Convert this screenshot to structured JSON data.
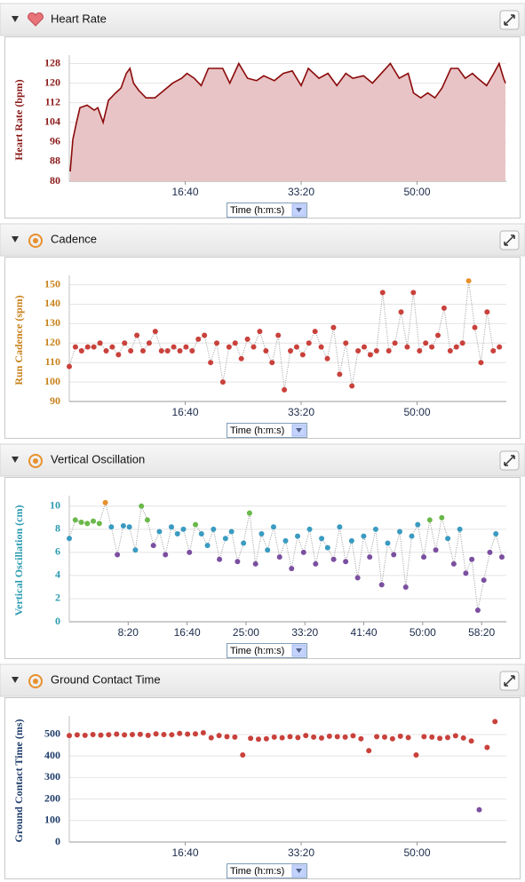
{
  "chart_data": [
    {
      "type": "area",
      "title": "Heart Rate",
      "ylabel": "Heart Rate (bpm)",
      "x_selector": "Time (h:m:s)",
      "color": "#8b0a0a",
      "fill_color": "#e8c4c6",
      "axis_color": "#8b1a1a",
      "grid": true,
      "xlim": [
        0,
        3770
      ],
      "xticks": [
        {
          "value": 1000,
          "label": "16:40"
        },
        {
          "value": 2000,
          "label": "33:20"
        },
        {
          "value": 3000,
          "label": "50:00"
        }
      ],
      "ylim": [
        80,
        130
      ],
      "yticks": [
        80,
        88,
        96,
        104,
        112,
        120,
        128
      ],
      "x": [
        8,
        31,
        62,
        92,
        154,
        215,
        246,
        292,
        338,
        400,
        446,
        492,
        523,
        554,
        600,
        662,
        738,
        815,
        892,
        969,
        1015,
        1077,
        1138,
        1200,
        1262,
        1323,
        1385,
        1462,
        1538,
        1615,
        1677,
        1769,
        1846,
        1923,
        2000,
        2062,
        2154,
        2231,
        2308,
        2385,
        2446,
        2538,
        2615,
        2692,
        2769,
        2846,
        2923,
        2969,
        3031,
        3092,
        3154,
        3215,
        3292,
        3354,
        3415,
        3477,
        3523,
        3600,
        3662,
        3708,
        3746,
        3762
      ],
      "values": [
        84,
        97,
        104,
        110,
        111,
        109,
        110,
        104,
        113,
        116,
        118,
        124,
        126,
        120,
        117,
        114,
        114,
        117,
        120,
        122,
        124,
        122,
        119,
        126,
        126,
        126,
        120,
        128,
        122,
        121,
        123,
        121,
        124,
        125,
        119,
        126,
        122,
        124,
        119,
        124,
        122,
        123,
        120,
        124,
        128,
        122,
        124,
        116,
        114,
        116,
        114,
        118,
        126,
        126,
        122,
        124,
        122,
        119,
        124,
        128,
        122,
        120
      ]
    },
    {
      "type": "scatter",
      "title": "Cadence",
      "ylabel": "Run Cadence (spm)",
      "x_selector": "Time (h:m:s)",
      "connector_color": "#9a9a9a",
      "axis_color": "#c8811a",
      "grid": true,
      "xlim": [
        0,
        3770
      ],
      "xticks": [
        {
          "value": 1000,
          "label": "16:40"
        },
        {
          "value": 2000,
          "label": "33:20"
        },
        {
          "value": 3000,
          "label": "50:00"
        }
      ],
      "ylim": [
        90,
        153
      ],
      "yticks": [
        90,
        100,
        110,
        120,
        130,
        140,
        150
      ],
      "x": [
        0,
        53,
        106,
        159,
        212,
        265,
        318,
        371,
        424,
        477,
        530,
        583,
        636,
        689,
        742,
        795,
        848,
        901,
        954,
        1007,
        1060,
        1113,
        1166,
        1219,
        1272,
        1325,
        1378,
        1431,
        1484,
        1537,
        1590,
        1643,
        1696,
        1749,
        1802,
        1855,
        1908,
        1961,
        2014,
        2067,
        2120,
        2173,
        2226,
        2279,
        2332,
        2385,
        2438,
        2491,
        2544,
        2597,
        2650,
        2703,
        2756,
        2809,
        2862,
        2915,
        2968,
        3021,
        3074,
        3127,
        3180,
        3233,
        3286,
        3339,
        3392,
        3445,
        3498,
        3551,
        3604,
        3657,
        3710
      ],
      "values": [
        108,
        118,
        116,
        118,
        118,
        120,
        116,
        118,
        114,
        120,
        116,
        124,
        116,
        120,
        126,
        116,
        116,
        118,
        116,
        118,
        116,
        122,
        124,
        110,
        120,
        100,
        118,
        120,
        112,
        122,
        118,
        126,
        116,
        110,
        124,
        96,
        116,
        118,
        114,
        120,
        126,
        118,
        112,
        128,
        104,
        120,
        98,
        116,
        118,
        114,
        116,
        146,
        116,
        120,
        136,
        118,
        146,
        116,
        120,
        118,
        124,
        138,
        116,
        118,
        120,
        152,
        128,
        110,
        136,
        116,
        118
      ],
      "point_colors": [
        "#c9413b",
        "#c9413b",
        "#c9413b",
        "#c9413b",
        "#c9413b",
        "#c9413b",
        "#c9413b",
        "#c9413b",
        "#c9413b",
        "#c9413b",
        "#c9413b",
        "#c9413b",
        "#c9413b",
        "#c9413b",
        "#c9413b",
        "#c9413b",
        "#c9413b",
        "#c9413b",
        "#c9413b",
        "#c9413b",
        "#c9413b",
        "#c9413b",
        "#c9413b",
        "#c9413b",
        "#c9413b",
        "#c9413b",
        "#c9413b",
        "#c9413b",
        "#c9413b",
        "#c9413b",
        "#c9413b",
        "#c9413b",
        "#c9413b",
        "#c9413b",
        "#c9413b",
        "#c9413b",
        "#c9413b",
        "#c9413b",
        "#c9413b",
        "#c9413b",
        "#c9413b",
        "#c9413b",
        "#c9413b",
        "#c9413b",
        "#c9413b",
        "#c9413b",
        "#c9413b",
        "#c9413b",
        "#c9413b",
        "#c9413b",
        "#c9413b",
        "#c9413b",
        "#c9413b",
        "#c9413b",
        "#c9413b",
        "#c9413b",
        "#c9413b",
        "#c9413b",
        "#c9413b",
        "#c9413b",
        "#c9413b",
        "#c9413b",
        "#c9413b",
        "#c9413b",
        "#c9413b",
        "#e8902c",
        "#c9413b",
        "#c9413b",
        "#c9413b",
        "#c9413b",
        "#c9413b"
      ]
    },
    {
      "type": "scatter",
      "title": "Vertical Oscillation",
      "ylabel": "Vertical Oscillation (cm)",
      "x_selector": "Time (h:m:s)",
      "connector_color": "#9a9a9a",
      "axis_color": "#2a9bb0",
      "grid": true,
      "xlim": [
        0,
        3710
      ],
      "xticks": [
        {
          "value": 500,
          "label": "8:20"
        },
        {
          "value": 1000,
          "label": "16:40"
        },
        {
          "value": 1500,
          "label": "25:00"
        },
        {
          "value": 2000,
          "label": "33:20"
        },
        {
          "value": 2500,
          "label": "41:40"
        },
        {
          "value": 3000,
          "label": "50:00"
        },
        {
          "value": 3500,
          "label": "58:20"
        }
      ],
      "ylim": [
        0,
        10.6
      ],
      "yticks": [
        0,
        2,
        4,
        6,
        8,
        10
      ],
      "x": [
        0,
        51,
        102,
        153,
        204,
        255,
        306,
        357,
        408,
        459,
        510,
        561,
        612,
        663,
        714,
        765,
        816,
        867,
        918,
        969,
        1020,
        1071,
        1122,
        1173,
        1224,
        1275,
        1326,
        1377,
        1428,
        1479,
        1530,
        1581,
        1632,
        1683,
        1734,
        1785,
        1836,
        1887,
        1938,
        1989,
        2040,
        2091,
        2142,
        2193,
        2244,
        2295,
        2346,
        2397,
        2448,
        2499,
        2550,
        2601,
        2652,
        2703,
        2754,
        2805,
        2856,
        2907,
        2958,
        3009,
        3060,
        3111,
        3162,
        3213,
        3264,
        3315,
        3366,
        3417,
        3468,
        3519,
        3570,
        3621,
        3672
      ],
      "values": [
        7.2,
        8.8,
        8.6,
        8.5,
        8.7,
        8.5,
        10.3,
        8.2,
        5.8,
        8.3,
        8.2,
        6.2,
        10.0,
        8.8,
        6.6,
        7.8,
        5.8,
        8.2,
        7.6,
        8.0,
        6.0,
        8.4,
        7.6,
        6.6,
        8.0,
        5.4,
        7.2,
        7.8,
        5.2,
        6.8,
        9.4,
        5.0,
        7.6,
        6.2,
        8.2,
        5.6,
        7.0,
        4.6,
        7.4,
        6.0,
        8.0,
        5.0,
        7.2,
        6.4,
        5.4,
        8.2,
        5.2,
        7.0,
        3.8,
        7.4,
        5.6,
        8.0,
        3.2,
        6.8,
        5.8,
        7.8,
        3.0,
        7.4,
        8.4,
        5.6,
        8.8,
        6.2,
        9.0,
        7.2,
        5.0,
        8.0,
        4.2,
        5.4,
        1.0,
        3.6,
        6.0,
        7.6,
        5.6
      ],
      "point_colors": [
        "#3a9bc1",
        "#6ab84a",
        "#6ab84a",
        "#6ab84a",
        "#6ab84a",
        "#6ab84a",
        "#e8902c",
        "#3a9bc1",
        "#7b4fa0",
        "#3a9bc1",
        "#3a9bc1",
        "#3a9bc1",
        "#6ab84a",
        "#6ab84a",
        "#7b4fa0",
        "#3a9bc1",
        "#7b4fa0",
        "#3a9bc1",
        "#3a9bc1",
        "#3a9bc1",
        "#7b4fa0",
        "#6ab84a",
        "#3a9bc1",
        "#3a9bc1",
        "#3a9bc1",
        "#7b4fa0",
        "#3a9bc1",
        "#3a9bc1",
        "#7b4fa0",
        "#3a9bc1",
        "#6ab84a",
        "#7b4fa0",
        "#3a9bc1",
        "#3a9bc1",
        "#3a9bc1",
        "#7b4fa0",
        "#3a9bc1",
        "#7b4fa0",
        "#3a9bc1",
        "#7b4fa0",
        "#3a9bc1",
        "#7b4fa0",
        "#3a9bc1",
        "#3a9bc1",
        "#7b4fa0",
        "#3a9bc1",
        "#7b4fa0",
        "#3a9bc1",
        "#7b4fa0",
        "#3a9bc1",
        "#7b4fa0",
        "#3a9bc1",
        "#7b4fa0",
        "#3a9bc1",
        "#7b4fa0",
        "#3a9bc1",
        "#7b4fa0",
        "#3a9bc1",
        "#3a9bc1",
        "#7b4fa0",
        "#6ab84a",
        "#7b4fa0",
        "#6ab84a",
        "#3a9bc1",
        "#7b4fa0",
        "#3a9bc1",
        "#7b4fa0",
        "#7b4fa0",
        "#7b4fa0",
        "#7b4fa0",
        "#7b4fa0",
        "#3a9bc1",
        "#7b4fa0"
      ]
    },
    {
      "type": "scatter",
      "title": "Ground Contact Time",
      "ylabel": "Ground Contact Time (ms)",
      "x_selector": "Time (h:m:s)",
      "axis_color": "#1f3d6b",
      "grid": true,
      "xlim": [
        0,
        3770
      ],
      "xticks": [
        {
          "value": 1000,
          "label": "16:40"
        },
        {
          "value": 2000,
          "label": "33:20"
        },
        {
          "value": 3000,
          "label": "50:00"
        }
      ],
      "ylim": [
        0,
        570
      ],
      "yticks": [
        0,
        100,
        200,
        300,
        400,
        500
      ],
      "x": [
        0,
        68,
        136,
        204,
        272,
        340,
        408,
        476,
        544,
        612,
        680,
        748,
        816,
        884,
        952,
        1020,
        1088,
        1156,
        1224,
        1292,
        1360,
        1428,
        1496,
        1564,
        1632,
        1700,
        1768,
        1836,
        1904,
        1972,
        2040,
        2108,
        2176,
        2244,
        2312,
        2380,
        2448,
        2516,
        2584,
        2652,
        2720,
        2788,
        2856,
        2924,
        2992,
        3060,
        3128,
        3196,
        3264,
        3332,
        3400,
        3468,
        3536,
        3604,
        3672
      ],
      "values": [
        495,
        498,
        496,
        500,
        497,
        499,
        502,
        498,
        500,
        501,
        496,
        503,
        500,
        499,
        505,
        502,
        503,
        508,
        485,
        495,
        490,
        488,
        405,
        482,
        478,
        480,
        488,
        485,
        490,
        486,
        495,
        488,
        484,
        492,
        490,
        488,
        494,
        480,
        425,
        490,
        488,
        480,
        492,
        486,
        405,
        490,
        488,
        482,
        486,
        494,
        484,
        470,
        150,
        440,
        560
      ],
      "point_colors": [
        "#c9413b",
        "#c9413b",
        "#c9413b",
        "#c9413b",
        "#c9413b",
        "#c9413b",
        "#c9413b",
        "#c9413b",
        "#c9413b",
        "#c9413b",
        "#c9413b",
        "#c9413b",
        "#c9413b",
        "#c9413b",
        "#c9413b",
        "#c9413b",
        "#c9413b",
        "#c9413b",
        "#c9413b",
        "#c9413b",
        "#c9413b",
        "#c9413b",
        "#c9413b",
        "#c9413b",
        "#c9413b",
        "#c9413b",
        "#c9413b",
        "#c9413b",
        "#c9413b",
        "#c9413b",
        "#c9413b",
        "#c9413b",
        "#c9413b",
        "#c9413b",
        "#c9413b",
        "#c9413b",
        "#c9413b",
        "#c9413b",
        "#c9413b",
        "#c9413b",
        "#c9413b",
        "#c9413b",
        "#c9413b",
        "#c9413b",
        "#c9413b",
        "#c9413b",
        "#c9413b",
        "#c9413b",
        "#c9413b",
        "#c9413b",
        "#c9413b",
        "#c9413b",
        "#7b4fa0",
        "#c9413b",
        "#c9413b"
      ]
    }
  ]
}
